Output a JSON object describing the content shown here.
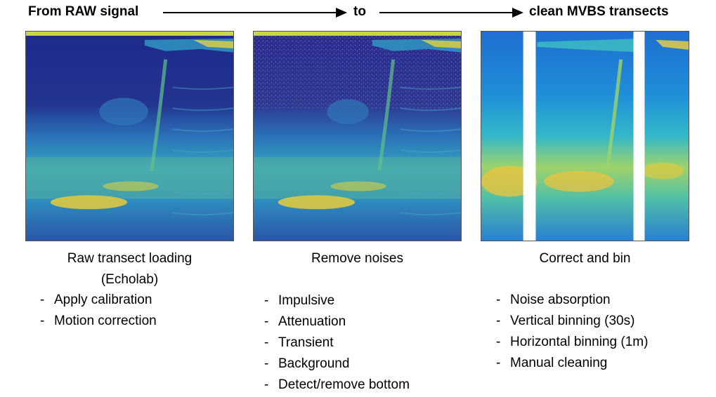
{
  "header": {
    "from_label": "From RAW signal",
    "to_label": "to",
    "end_label": "clean MVBS transects"
  },
  "panels": [
    {
      "caption_line1": "Raw transect loading",
      "caption_line2": "(Echolab)",
      "steps": [
        "Apply calibration",
        "Motion correction"
      ]
    },
    {
      "caption_line1": "Remove noises",
      "steps": [
        "Impulsive",
        "Attenuation",
        "Transient",
        "Background",
        "Detect/remove bottom"
      ]
    },
    {
      "caption_line1": "Correct and bin",
      "steps": [
        "Noise absorption",
        "Vertical binning (30s)",
        "Horizontal binning (1m)",
        "Manual cleaning"
      ]
    }
  ],
  "colors": {
    "echogram_low": "#1f2a8a",
    "echogram_mid": "#1f8fc0",
    "echogram_high": "#f5d33a"
  }
}
